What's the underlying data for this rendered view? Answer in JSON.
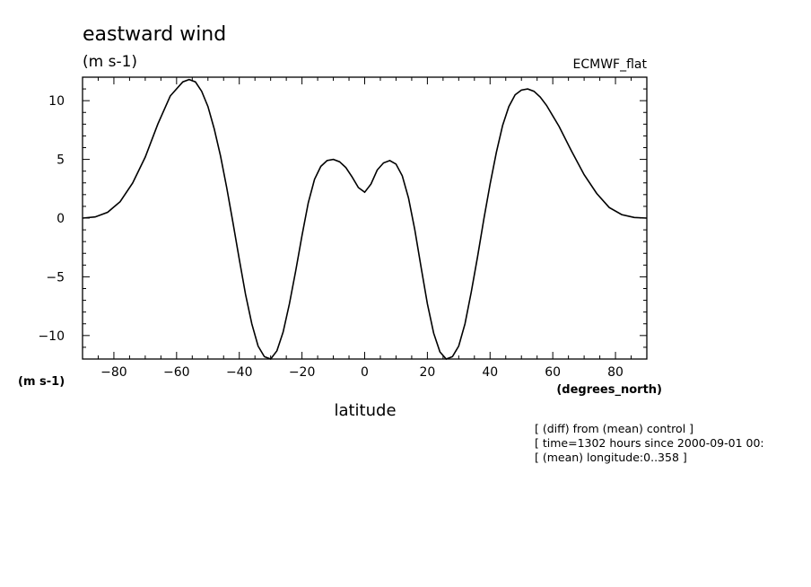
{
  "chart_data": {
    "type": "line",
    "title": "eastward wind",
    "units": "(m s-1)",
    "dataset": "ECMWF_flat",
    "xlabel": "latitude",
    "x_units": "(degrees_north)",
    "y_units": "(m s-1)",
    "xlim": [
      -90,
      90
    ],
    "ylim": [
      -12,
      12
    ],
    "x_ticks": [
      -80,
      -60,
      -40,
      -20,
      0,
      20,
      40,
      60,
      80
    ],
    "y_ticks": [
      10,
      5,
      0,
      -5,
      -10
    ],
    "grid": false,
    "series": [
      {
        "x": [
          -90,
          -86,
          -82,
          -78,
          -74,
          -70,
          -66,
          -62,
          -58,
          -56,
          -54,
          -52,
          -50,
          -48,
          -46,
          -44,
          -42,
          -40,
          -38,
          -36,
          -34,
          -32,
          -30,
          -28,
          -26,
          -24,
          -22,
          -20,
          -18,
          -16,
          -14,
          -12,
          -10,
          -8,
          -6,
          -4,
          -2,
          0,
          2,
          4,
          6,
          8,
          10,
          12,
          14,
          16,
          18,
          20,
          22,
          24,
          26,
          28,
          30,
          32,
          34,
          36,
          38,
          40,
          42,
          44,
          46,
          48,
          50,
          52,
          54,
          56,
          58,
          62,
          66,
          70,
          74,
          78,
          82,
          86,
          90
        ],
        "y": [
          0,
          0.1,
          0.5,
          1.4,
          3,
          5.2,
          8,
          10.4,
          11.6,
          11.8,
          11.6,
          10.8,
          9.5,
          7.6,
          5.3,
          2.6,
          -0.4,
          -3.5,
          -6.5,
          -9,
          -10.9,
          -11.8,
          -12,
          -11.3,
          -9.7,
          -7.3,
          -4.5,
          -1.5,
          1.3,
          3.3,
          4.4,
          4.9,
          5,
          4.8,
          4.3,
          3.5,
          2.6,
          2.2,
          2.9,
          4.1,
          4.7,
          4.9,
          4.6,
          3.6,
          1.7,
          -1,
          -4.2,
          -7.3,
          -9.8,
          -11.4,
          -12,
          -11.8,
          -10.9,
          -9,
          -6.3,
          -3.3,
          -0.1,
          2.9,
          5.6,
          7.9,
          9.5,
          10.5,
          10.9,
          11,
          10.8,
          10.3,
          9.6,
          7.8,
          5.7,
          3.7,
          2.1,
          0.9,
          0.3,
          0.05,
          0
        ]
      }
    ]
  },
  "annotations": [
    "[ (diff) from (mean) control ]",
    "[ time=1302 hours since 2000-09-01 00:",
    "[ (mean) longitude:0..358 ]"
  ],
  "colors": {
    "line": "#000000",
    "background": "#ffffff"
  }
}
